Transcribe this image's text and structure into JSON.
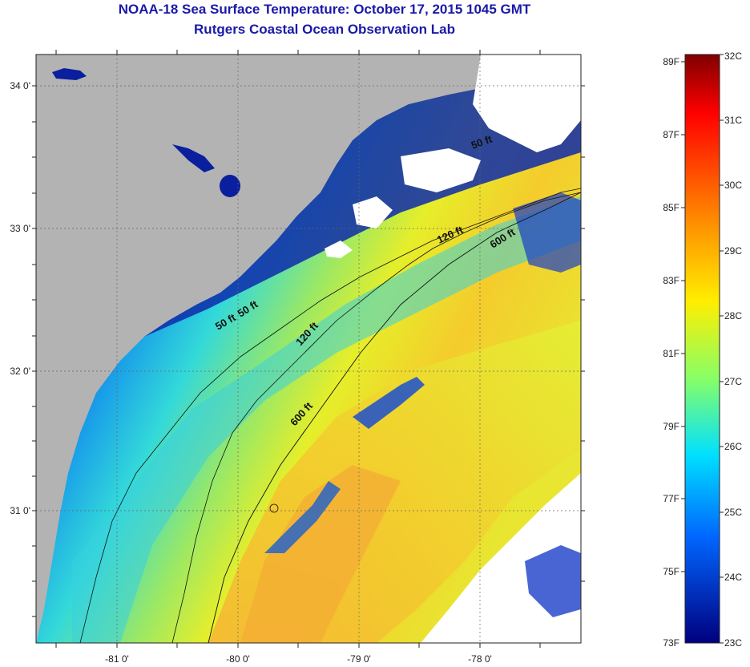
{
  "header": {
    "title": "NOAA-18 Sea Surface Temperature:  October 17, 2015 1045 GMT",
    "subtitle": "Rutgers Coastal Ocean Observation Lab"
  },
  "map": {
    "lon_ticks": [
      "-81 0'",
      "-80 0'",
      "-79 0'",
      "-78 0'"
    ],
    "lat_ticks": [
      "34 0'",
      "33 0'",
      "32 0'",
      "31 0'"
    ],
    "contour_labels": [
      "50 ft",
      "50 ft",
      "120 ft",
      "120 ft",
      "600 ft",
      "600 ft",
      "50 ft"
    ],
    "colors": {
      "land": "#b3b3b3",
      "cloud": "#ffffff",
      "sst_cold": "#0a1f9e",
      "sst_warm": "#ffbf33"
    }
  },
  "colorbar": {
    "fahrenheit": [
      "89F",
      "87F",
      "85F",
      "83F",
      "81F",
      "79F",
      "77F",
      "75F",
      "73F"
    ],
    "celsius": [
      "32C",
      "31C",
      "30C",
      "29C",
      "28C",
      "27C",
      "26C",
      "25C",
      "24C",
      "23C"
    ]
  }
}
